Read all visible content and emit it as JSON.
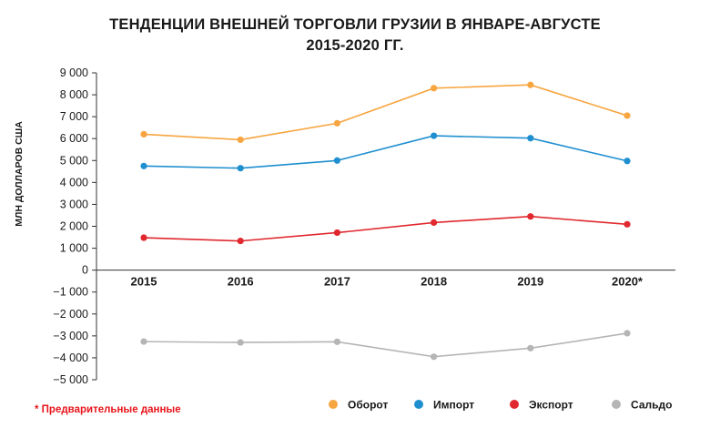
{
  "title": {
    "line1": "ТЕНДЕНЦИИ ВНЕШНЕЙ ТОРГОВЛИ ГРУЗИИ В ЯНВАРЕ-АВГУСТЕ",
    "line2": "2015-2020 ГГ."
  },
  "note": "* Предварительные данные",
  "chart_data": {
    "type": "line",
    "title": "ТЕНДЕНЦИИ ВНЕШНЕЙ ТОРГОВЛИ ГРУЗИИ В ЯНВАРЕ-АВГУСТЕ 2015-2020 ГГ.",
    "xlabel": "",
    "ylabel": "МЛН ДОЛЛАРОВ США",
    "categories": [
      "2015",
      "2016",
      "2017",
      "2018",
      "2019",
      "2020*"
    ],
    "ylim": [
      -5000,
      9000
    ],
    "yticks": [
      9000,
      8000,
      7000,
      6000,
      5000,
      4000,
      3000,
      2000,
      1000,
      0,
      -1000,
      -2000,
      -3000,
      -4000,
      -5000
    ],
    "ytick_labels": [
      "9 000",
      "8 000",
      "7 000",
      "6 000",
      "5 000",
      "4 000",
      "3 000",
      "2 000",
      "1 000",
      "0",
      "−1 000",
      "−2 000",
      "−3 000",
      "−4 000",
      "−5 000"
    ],
    "grid": false,
    "legend_position": "bottom",
    "series": [
      {
        "name": "Оборот",
        "color": "#f7a540",
        "values": [
          6200,
          5950,
          6700,
          8300,
          8450,
          7050
        ]
      },
      {
        "name": "Импорт",
        "color": "#1f8fcf",
        "values": [
          4750,
          4650,
          5000,
          6130,
          6020,
          4980
        ]
      },
      {
        "name": "Экспорт",
        "color": "#e0282e",
        "values": [
          1480,
          1330,
          1710,
          2170,
          2450,
          2090
        ]
      },
      {
        "name": "Сальдо",
        "color": "#b5b5b5",
        "values": [
          -3260,
          -3300,
          -3270,
          -3950,
          -3560,
          -2880
        ]
      }
    ]
  }
}
